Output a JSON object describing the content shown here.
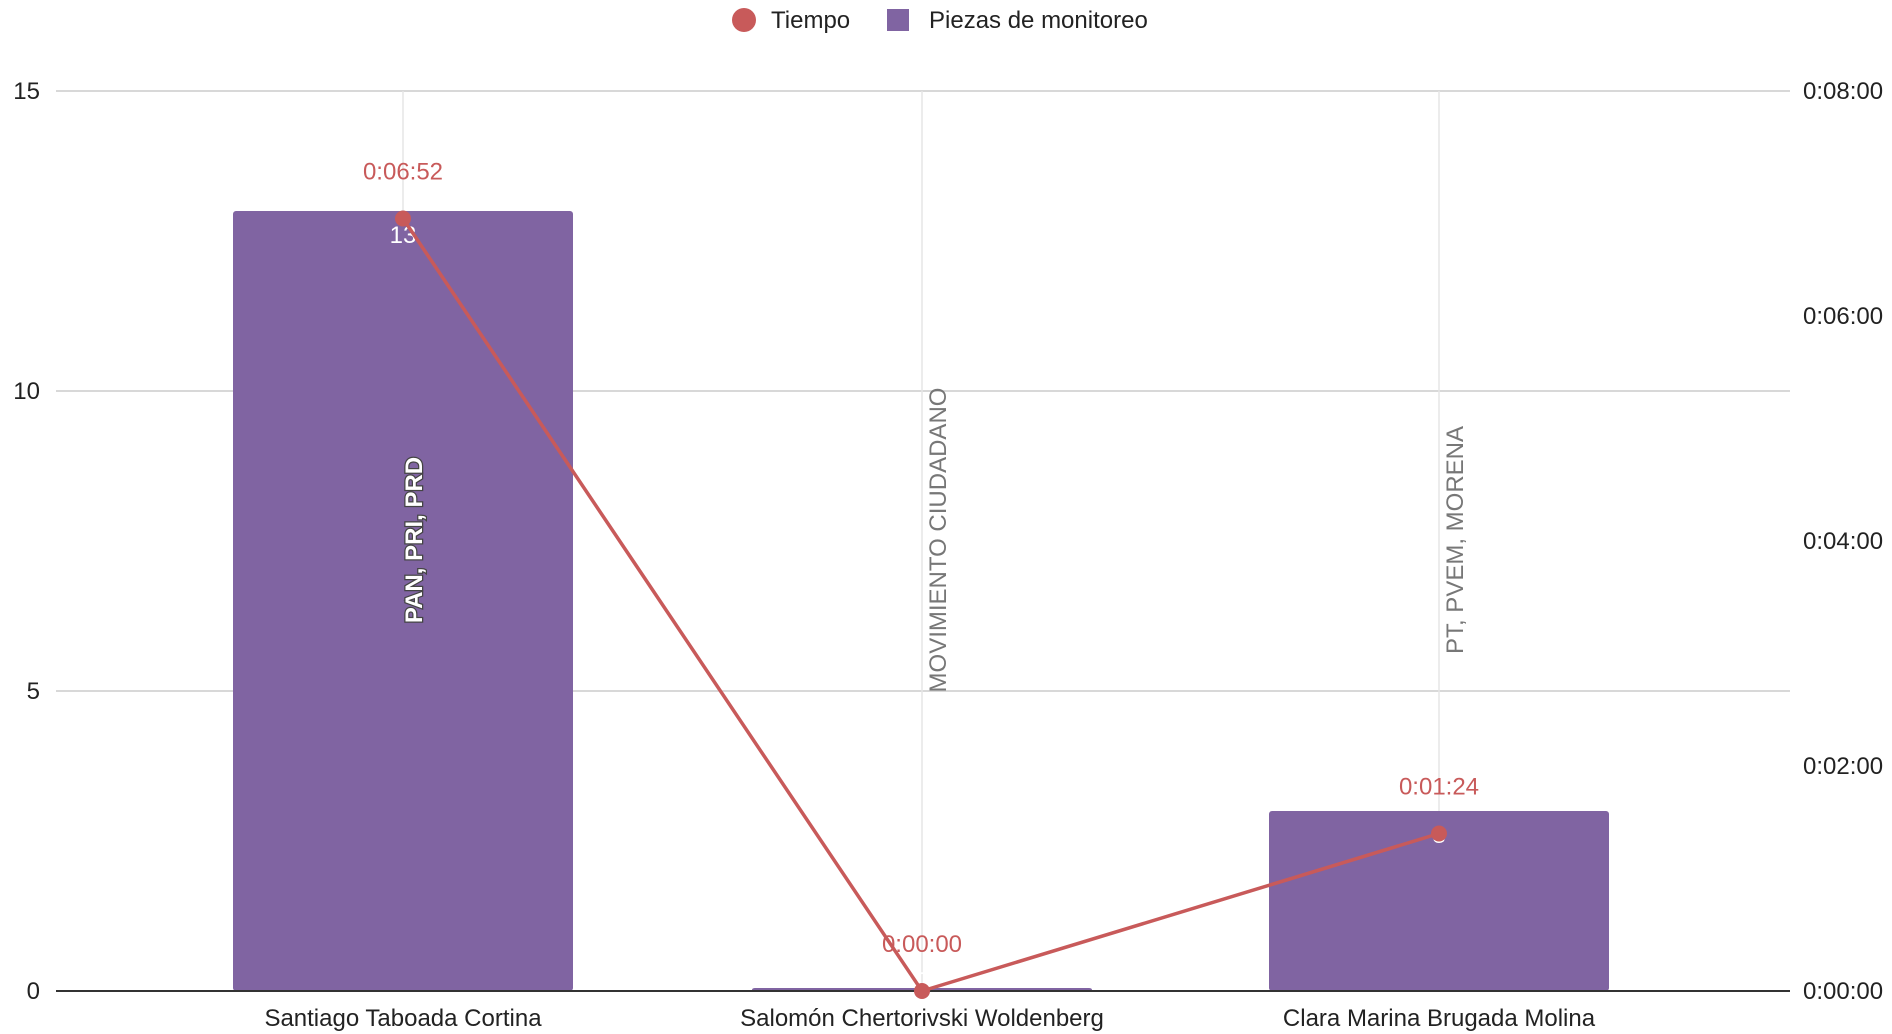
{
  "chart_data": {
    "type": "bar",
    "categories": [
      "Santiago Taboada Cortina",
      "Salomón Chertorivski Woldenberg",
      "Clara Marina Brugada Molina"
    ],
    "legend": {
      "placement": "top"
    },
    "grid": true,
    "series": [
      {
        "name": "Piezas de monitoreo",
        "type": "bar",
        "axis": "left",
        "color": "#8064a2",
        "values": [
          13,
          0,
          3
        ],
        "value_labels": [
          "13",
          "0",
          "3"
        ],
        "annotations": [
          "PAN, PRI, PRD",
          "MOVIMIENTO CIUDADANO",
          "PT, PVEM, MORENA"
        ]
      },
      {
        "name": "Tiempo",
        "type": "line",
        "axis": "right",
        "color": "#c85a5a",
        "values": [
          "0:06:52",
          "0:00:00",
          "0:01:24"
        ],
        "values_seconds": [
          412,
          0,
          84
        ]
      }
    ],
    "y_left": {
      "min": 0,
      "max": 15,
      "ticks": [
        "0",
        "5",
        "10",
        "15"
      ]
    },
    "y_right": {
      "min_seconds": 0,
      "max_seconds": 480,
      "ticks": [
        "0:00:00",
        "0:02:00",
        "0:04:00",
        "0:06:00",
        "0:08:00"
      ]
    }
  }
}
